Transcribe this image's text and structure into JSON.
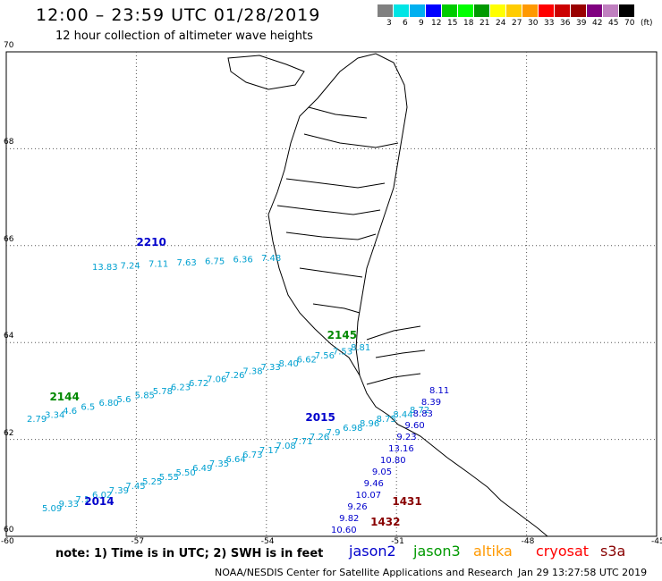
{
  "header": {
    "title": "12:00 – 23:59 UTC 01/28/2019",
    "subtitle": "12 hour collection of altimeter wave heights"
  },
  "legend": {
    "colors": [
      "#808080",
      "#00e5e5",
      "#00b0f0",
      "#0000ff",
      "#00cc00",
      "#00ff00",
      "#009900",
      "#ffff00",
      "#ffcc00",
      "#ff9900",
      "#ff0000",
      "#cc0000",
      "#990000",
      "#800080",
      "#c080c0",
      "#000000"
    ],
    "ticks": [
      "3",
      "6",
      "9",
      "12",
      "15",
      "18",
      "21",
      "24",
      "27",
      "30",
      "33",
      "36",
      "39",
      "42",
      "45",
      "70",
      "(ft)"
    ]
  },
  "axes": {
    "y_ticks": [
      "60",
      "62",
      "64",
      "66",
      "68",
      "70"
    ],
    "x_ticks": [
      "-60",
      "-57",
      "-54",
      "-51",
      "-48",
      "-45"
    ],
    "lat_range": [
      60,
      70
    ],
    "lon_range": [
      -60,
      -45
    ]
  },
  "tracks": [
    {
      "time": "2210",
      "color": "#0000cc",
      "label_lon": -57,
      "label_lat": 66.0
    },
    {
      "time": "2145",
      "color": "#008800",
      "label_lon": -52.6,
      "label_lat": 64.08
    },
    {
      "time": "2144",
      "color": "#008800",
      "label_lon": -59.0,
      "label_lat": 62.8
    },
    {
      "time": "2015",
      "color": "#0000cc",
      "label_lon": -53.1,
      "label_lat": 62.38
    },
    {
      "time": "2014",
      "color": "#0000cc",
      "label_lon": -58.2,
      "label_lat": 60.65
    },
    {
      "time": "1431",
      "color": "#880000",
      "label_lon": -51.1,
      "label_lat": 60.65
    },
    {
      "time": "1432",
      "color": "#880000",
      "label_lon": -51.6,
      "label_lat": 60.22
    }
  ],
  "swh_values": {
    "track_66": [
      "13.83",
      "7.24",
      "7.11",
      "7.63",
      "6.75",
      "6.36",
      "7.48"
    ],
    "track_64": [
      "2.79",
      "3.34",
      "4.6",
      "6.5",
      "6.80",
      "5.6",
      "5.85",
      "5.78",
      "6.23",
      "6.72",
      "7.06",
      "7.26",
      "7.38",
      "7.33",
      "8.40",
      "6.62",
      "7.56",
      "7.53",
      "8.81"
    ],
    "track_62": [
      "5.09",
      "9.33",
      "7.1",
      "6.02",
      "7.39",
      "7.45",
      "5.25",
      "5.55",
      "5.50",
      "6.49",
      "7.35",
      "6.64",
      "6.73",
      "7.17",
      "7.08",
      "7.71",
      "7.26",
      "7.9",
      "6.98",
      "8.96",
      "8.75",
      "8.44",
      "8.72"
    ],
    "track_s": [
      "8.11",
      "8.39",
      "8.83",
      "9.60",
      "9.23",
      "13.16",
      "10.80",
      "9.05",
      "9.46",
      "10.07",
      "9.26",
      "9.82",
      "10.60"
    ]
  },
  "footer": {
    "note": "note: 1) Time is in UTC; 2) SWH is in feet",
    "credit": "NOAA/NESDIS Center for Satellite Applications and Research",
    "generated": "Jan 29 13:27:58 UTC 2019"
  },
  "satellites": [
    {
      "name": "jason2",
      "color": "#0000cc"
    },
    {
      "name": "jason3",
      "color": "#009900"
    },
    {
      "name": "altika",
      "color": "#ff9900"
    },
    {
      "name": "cryosat",
      "color": "#ff0000"
    },
    {
      "name": "s3a",
      "color": "#880000"
    }
  ]
}
